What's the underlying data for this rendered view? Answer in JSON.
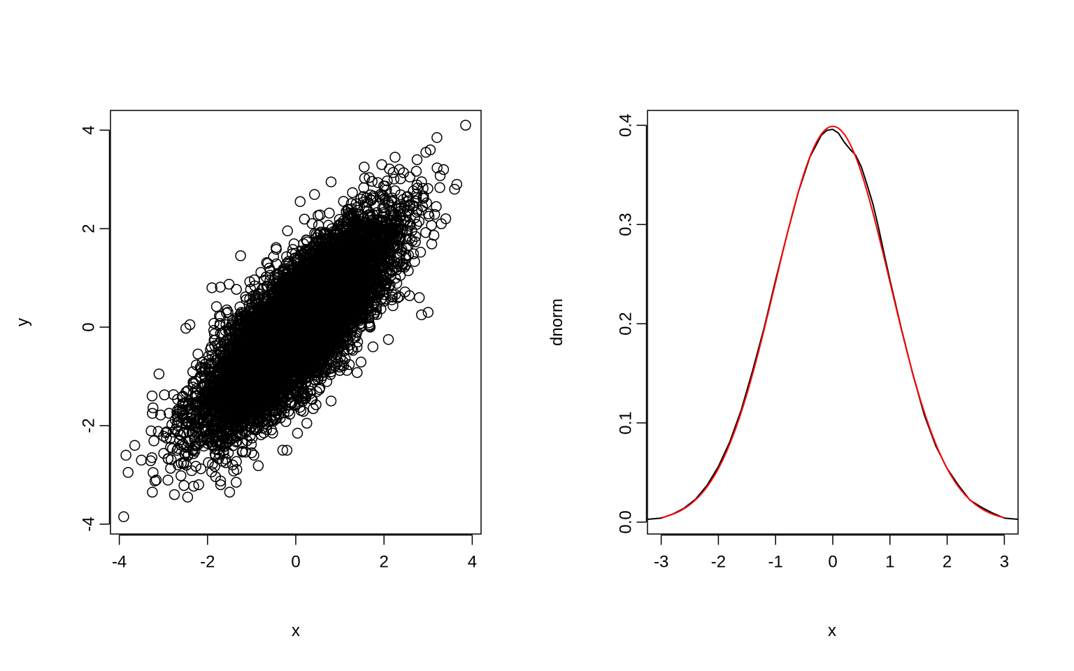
{
  "chart_data": [
    {
      "type": "scatter",
      "title": "",
      "xlabel": "x",
      "ylabel": "y",
      "xlim": [
        -4.2,
        4.2
      ],
      "ylim": [
        -4.2,
        4.4
      ],
      "xticks": [
        "-4",
        "-2",
        "0",
        "2",
        "4"
      ],
      "yticks": [
        "-4",
        "-2",
        "0",
        "2",
        "4"
      ],
      "marker": "open-circle",
      "correlation": 0.8,
      "n_points": 10000,
      "points": [
        {
          "x": -3.9,
          "y": -3.85
        },
        {
          "x": -3.85,
          "y": -2.6
        },
        {
          "x": -3.8,
          "y": -2.95
        },
        {
          "x": -3.65,
          "y": -2.4
        },
        {
          "x": -3.5,
          "y": -2.7
        },
        {
          "x": -3.25,
          "y": -3.35
        },
        {
          "x": -3.25,
          "y": -1.75
        },
        {
          "x": -3.1,
          "y": -0.95
        },
        {
          "x": -2.75,
          "y": -3.4
        },
        {
          "x": -2.45,
          "y": -3.45
        },
        {
          "x": -2.4,
          "y": 0.05
        },
        {
          "x": -1.9,
          "y": 0.8
        },
        {
          "x": -1.25,
          "y": 1.45
        },
        {
          "x": -0.6,
          "y": 1.2
        },
        {
          "x": -2.2,
          "y": -3.2
        },
        {
          "x": -1.5,
          "y": -3.35
        },
        {
          "x": -1.35,
          "y": -3.15
        },
        {
          "x": 0.1,
          "y": 2.55
        },
        {
          "x": 0.8,
          "y": 2.95
        },
        {
          "x": 1.55,
          "y": 3.25
        },
        {
          "x": 1.95,
          "y": 3.3
        },
        {
          "x": 2.25,
          "y": 3.45
        },
        {
          "x": 2.75,
          "y": 3.4
        },
        {
          "x": 2.95,
          "y": 3.55
        },
        {
          "x": 3.05,
          "y": 3.6
        },
        {
          "x": 3.2,
          "y": 3.85
        },
        {
          "x": 3.35,
          "y": 3.2
        },
        {
          "x": 3.6,
          "y": 2.8
        },
        {
          "x": 3.65,
          "y": 2.9
        },
        {
          "x": 3.85,
          "y": 4.1
        },
        {
          "x": 3.4,
          "y": 2.2
        },
        {
          "x": 3.3,
          "y": 2.1
        },
        {
          "x": 2.85,
          "y": 0.25
        },
        {
          "x": 3.0,
          "y": 0.3
        },
        {
          "x": 2.8,
          "y": 0.6
        },
        {
          "x": 2.1,
          "y": -0.25
        },
        {
          "x": 1.75,
          "y": -0.4
        },
        {
          "x": 0.8,
          "y": -1.5
        },
        {
          "x": 0.25,
          "y": -1.95
        },
        {
          "x": -0.2,
          "y": -2.5
        },
        {
          "x": -1.0,
          "y": -2.55
        },
        {
          "x": -0.95,
          "y": -2.6
        }
      ]
    },
    {
      "type": "line",
      "title": "",
      "xlabel": "x",
      "ylabel": "dnorm",
      "xlim": [
        -3.24,
        3.24
      ],
      "ylim": [
        -0.012,
        0.415
      ],
      "xticks": [
        "-3",
        "-2",
        "-1",
        "0",
        "1",
        "2",
        "3"
      ],
      "yticks": [
        "0.0",
        "0.1",
        "0.2",
        "0.3",
        "0.4"
      ],
      "series": [
        {
          "color": "#000000",
          "x": [
            -3.6,
            -3.0,
            -2.8,
            -2.6,
            -2.4,
            -2.2,
            -2.0,
            -1.8,
            -1.6,
            -1.4,
            -1.2,
            -1.0,
            -0.8,
            -0.6,
            -0.4,
            -0.2,
            -0.1,
            0.0,
            0.1,
            0.2,
            0.3,
            0.4,
            0.5,
            0.6,
            0.7,
            0.8,
            0.9,
            1.0,
            1.2,
            1.4,
            1.6,
            1.8,
            2.0,
            2.2,
            2.4,
            2.6,
            2.8,
            3.0,
            3.6
          ],
          "y": [
            0.001,
            0.004,
            0.008,
            0.014,
            0.023,
            0.037,
            0.056,
            0.081,
            0.113,
            0.153,
            0.196,
            0.244,
            0.29,
            0.333,
            0.368,
            0.39,
            0.395,
            0.396,
            0.392,
            0.383,
            0.376,
            0.37,
            0.358,
            0.34,
            0.321,
            0.297,
            0.27,
            0.244,
            0.195,
            0.149,
            0.108,
            0.077,
            0.054,
            0.037,
            0.022,
            0.015,
            0.009,
            0.004,
            0.001
          ]
        },
        {
          "color": "#ff0000",
          "function": "dnorm",
          "x_from": -3.0,
          "x_to": 3.0
        }
      ]
    }
  ]
}
